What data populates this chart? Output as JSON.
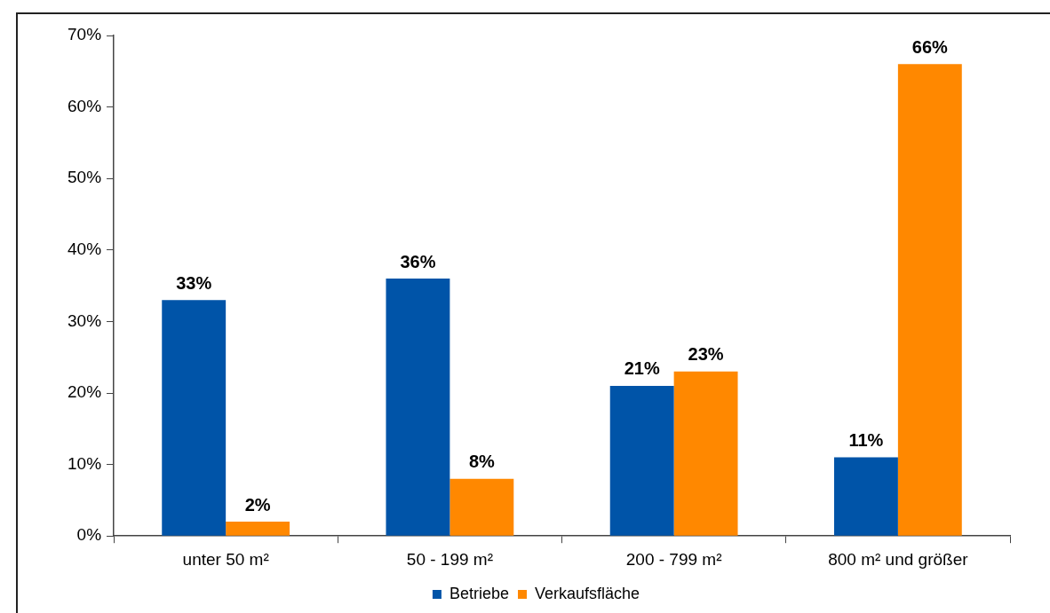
{
  "chart_data": {
    "type": "bar",
    "categories": [
      "unter 50 m²",
      "50 - 199 m²",
      "200 - 799 m²",
      "800 m² und größer"
    ],
    "series": [
      {
        "name": "Betriebe",
        "color": "#0054a8",
        "values": [
          33,
          36,
          21,
          11
        ],
        "value_labels": [
          "33%",
          "36%",
          "21%",
          "11%"
        ]
      },
      {
        "name": "Verkaufsfläche",
        "color": "#ff8800",
        "values": [
          2,
          8,
          23,
          66
        ],
        "value_labels": [
          "2%",
          "8%",
          "23%",
          "66%"
        ]
      }
    ],
    "ylim": [
      0,
      70
    ],
    "yticks": [
      {
        "value": 0,
        "label": "0%"
      },
      {
        "value": 10,
        "label": "10%"
      },
      {
        "value": 20,
        "label": "20%"
      },
      {
        "value": 30,
        "label": "30%"
      },
      {
        "value": 40,
        "label": "40%"
      },
      {
        "value": 50,
        "label": "50%"
      },
      {
        "value": 60,
        "label": "60%"
      },
      {
        "value": 70,
        "label": "70%"
      }
    ],
    "grid": false,
    "legend": "bottom"
  }
}
